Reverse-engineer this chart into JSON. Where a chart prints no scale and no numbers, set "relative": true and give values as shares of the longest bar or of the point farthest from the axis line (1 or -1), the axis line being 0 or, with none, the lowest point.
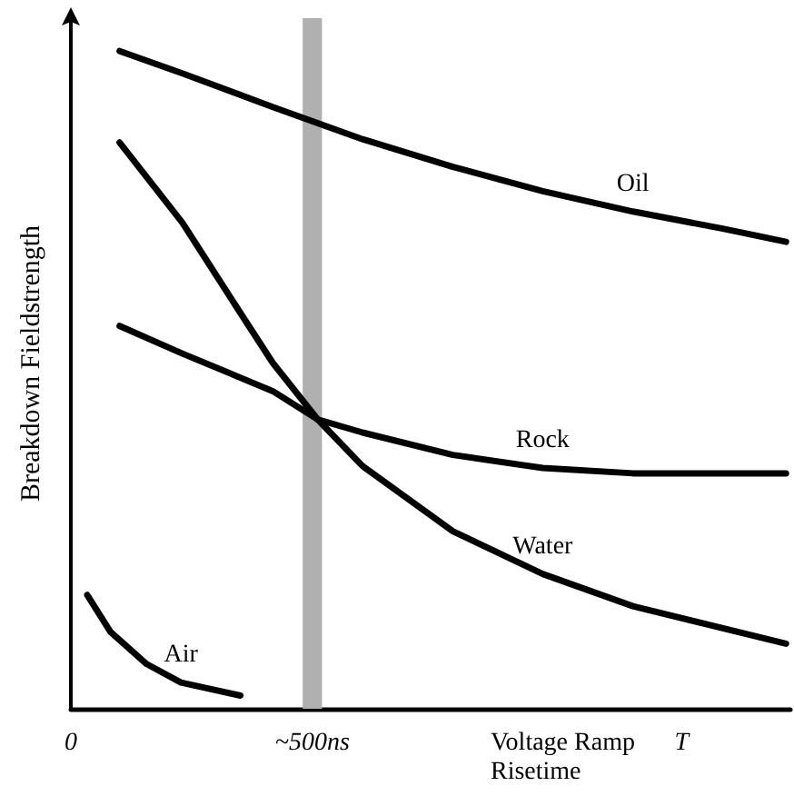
{
  "chart_data": {
    "type": "line",
    "relative": true,
    "xlabel": "Voltage Ramp Risetime",
    "ylabel": "Breakdown Fieldstrength",
    "xlim": [
      0,
      1490
    ],
    "xticks": [
      {
        "value": 0,
        "label": "0"
      },
      {
        "value": 500,
        "label": "~500ns"
      },
      {
        "value": 1265,
        "label": "T"
      }
    ],
    "tick_labels": "x",
    "grid": false,
    "legend": false,
    "marker": "none",
    "line_style": "solid",
    "bands": [
      {
        "axis": "x",
        "from": 480,
        "to": 520,
        "color": "#b0b0b0"
      }
    ],
    "series": [
      {
        "name": "Oil",
        "color": "#000000",
        "x": [
          101,
          231,
          418,
          604,
          791,
          977,
          1164,
          1350,
          1481
        ],
        "values": [
          1.0,
          0.966,
          0.915,
          0.866,
          0.824,
          0.787,
          0.756,
          0.73,
          0.71
        ]
      },
      {
        "name": "Rock",
        "color": "#000000",
        "x": [
          101,
          231,
          418,
          511,
          604,
          791,
          977,
          1164,
          1481
        ],
        "values": [
          0.582,
          0.54,
          0.483,
          0.44,
          0.42,
          0.386,
          0.366,
          0.358,
          0.358
        ]
      },
      {
        "name": "Water",
        "color": "#000000",
        "x": [
          101,
          231,
          343,
          418,
          511,
          604,
          791,
          977,
          1164,
          1481
        ],
        "values": [
          0.861,
          0.739,
          0.611,
          0.526,
          0.44,
          0.369,
          0.27,
          0.205,
          0.156,
          0.099
        ]
      },
      {
        "name": "Air",
        "color": "#000000",
        "x": [
          34,
          82,
          157,
          228,
          351
        ],
        "values": [
          0.173,
          0.117,
          0.068,
          0.04,
          0.02
        ]
      }
    ]
  }
}
